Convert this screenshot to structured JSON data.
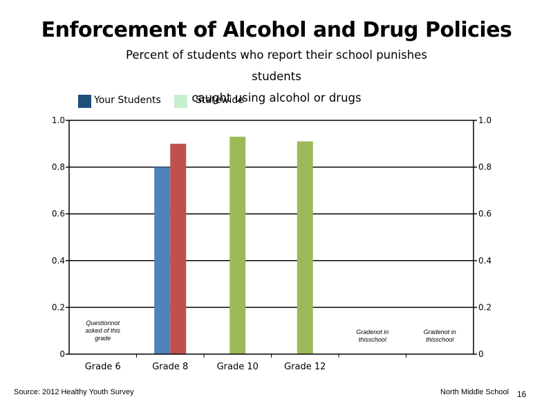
{
  "header": {
    "title": "Enforcement of Alcohol and Drug Policies",
    "subtitle_line1": "Percent of students who report their school punishes students",
    "subtitle_line2": "caught using alcohol or drugs"
  },
  "legend": [
    {
      "label": "Your Students",
      "color": "#1f4e79"
    },
    {
      "label": "Statewide",
      "color": "#c6efce"
    }
  ],
  "chart_data": {
    "type": "bar",
    "categories": [
      "Grade 6",
      "Grade 8",
      "Grade 10",
      "Grade 12",
      "",
      ""
    ],
    "series": [
      {
        "name": "Your Students",
        "values": [
          null,
          0.8,
          null,
          null,
          null,
          null
        ],
        "color": "#4f81bd"
      },
      {
        "name": "Statewide",
        "values": [
          null,
          0.9,
          0.93,
          0.91,
          null,
          null
        ],
        "colors": [
          "#c0504d",
          "#c0504d",
          "#9bbb59",
          "#9bbb59",
          "#9bbb59",
          "#9bbb59"
        ]
      }
    ],
    "ylim": [
      0,
      1.0
    ],
    "yticks_left": [
      "0",
      "0.2",
      "0.4",
      "0.6",
      "0.8",
      "1.0"
    ],
    "yticks_right": [
      "0",
      "0.2",
      "0.4",
      "0.6",
      "0.8",
      "1.0"
    ],
    "ytick_values": [
      0,
      0.2,
      0.4,
      0.6,
      0.8,
      1.0
    ],
    "grid": true,
    "annotations": [
      {
        "category_index": 0,
        "lines": [
          "Questionnot",
          "asked of this",
          "grade"
        ]
      },
      {
        "category_index": 4,
        "lines": [
          "Gradenot in",
          "thisschool"
        ]
      },
      {
        "category_index": 5,
        "lines": [
          "Gradenot in",
          "thisschool"
        ]
      }
    ]
  },
  "footer": {
    "source": "Source: 2012 Healthy Youth Survey",
    "school": "North Middle School",
    "page": "16"
  }
}
